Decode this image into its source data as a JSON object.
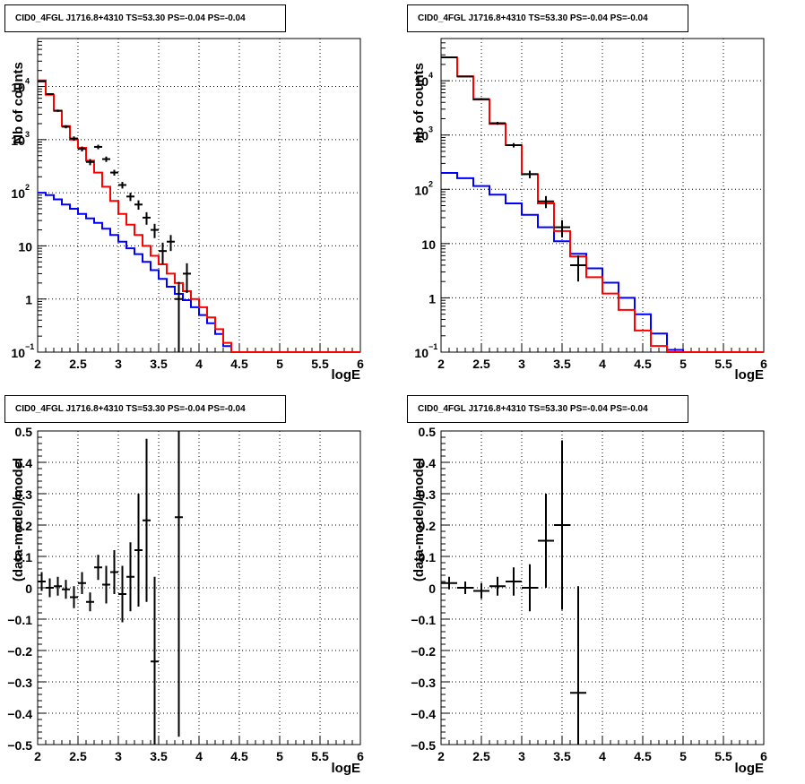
{
  "colors": {
    "data": "#000000",
    "total_model": "#ff0000",
    "bkg_model": "#0000ff",
    "grid": "#000000"
  },
  "chart_data": [
    {
      "type": "line",
      "panel": "top-left",
      "title": "CID0_4FGL J1716.8+4310 TS=53.30 PS=-0.04 PS=-0.04",
      "xlabel": "logE",
      "ylabel": "Nb of counts",
      "xlim": [
        2,
        6
      ],
      "ylim": [
        0.1,
        80000
      ],
      "yscale": "log",
      "grid": true,
      "xticks": [
        "2",
        "2.5",
        "3",
        "3.5",
        "4",
        "4.5",
        "5",
        "5.5",
        "6"
      ],
      "yticks": [
        {
          "v": 0.1,
          "base": "10",
          "exp": "−1"
        },
        {
          "v": 1,
          "label": "1"
        },
        {
          "v": 10,
          "label": "10"
        },
        {
          "v": 100,
          "base": "10",
          "exp": "2"
        },
        {
          "v": 1000,
          "base": "10",
          "exp": "3"
        },
        {
          "v": 10000,
          "base": "10",
          "exp": "4"
        }
      ],
      "bin_edges": [
        2,
        2.1,
        2.2,
        2.3,
        2.4,
        2.5,
        2.6,
        2.7,
        2.8,
        2.9,
        3.0,
        3.1,
        3.2,
        3.3,
        3.4,
        3.5,
        3.6,
        3.7,
        3.8,
        3.9,
        4.0,
        4.1,
        4.2,
        4.3,
        4.4,
        4.5,
        4.6,
        4.7,
        4.8,
        4.9,
        5.0,
        5.1,
        5.2,
        5.3,
        5.4,
        5.5,
        5.6,
        5.7,
        5.8,
        5.9,
        6.0
      ],
      "series": [
        {
          "role": "total_model",
          "values": [
            13000,
            7000,
            3500,
            1800,
            1000,
            700,
            400,
            240,
            130,
            70,
            40,
            25,
            16,
            10,
            6.5,
            4.5,
            3,
            2,
            1.4,
            1,
            0.7,
            0.45,
            0.27,
            0.15,
            0.1,
            0.1,
            0.1,
            0.1,
            0.1,
            0.1,
            0.1,
            0.1,
            0.1,
            0.1,
            0.1,
            0.1,
            0.1,
            0.1,
            0.1,
            0.1
          ]
        },
        {
          "role": "bkg_model",
          "values": [
            100,
            90,
            75,
            60,
            50,
            40,
            33,
            27,
            21,
            16,
            12,
            9,
            7,
            5,
            3.5,
            2.4,
            1.7,
            1.25,
            0.95,
            0.7,
            0.5,
            0.35,
            0.22,
            0.13,
            0.1,
            0.1,
            0.1,
            0.1,
            0.1,
            0.1,
            0.1,
            0.1,
            0.1,
            0.1,
            0.1,
            0.1,
            0.1,
            0.1,
            0.1,
            0.1
          ]
        }
      ],
      "points": [
        {
          "x": 2.05,
          "y": 12500,
          "yerr": 300
        },
        {
          "x": 2.15,
          "y": 7200,
          "yerr": 250
        },
        {
          "x": 2.25,
          "y": 3500,
          "yerr": 180
        },
        {
          "x": 2.35,
          "y": 1750,
          "yerr": 120
        },
        {
          "x": 2.45,
          "y": 1050,
          "yerr": 100
        },
        {
          "x": 2.55,
          "y": 670,
          "yerr": 70
        },
        {
          "x": 2.65,
          "y": 380,
          "yerr": 50
        },
        {
          "x": 2.75,
          "y": 730,
          "yerr": 70
        },
        {
          "x": 2.85,
          "y": 430,
          "yerr": 50
        },
        {
          "x": 2.95,
          "y": 240,
          "yerr": 30
        },
        {
          "x": 3.05,
          "y": 140,
          "yerr": 20
        },
        {
          "x": 3.15,
          "y": 85,
          "yerr": 15
        },
        {
          "x": 3.25,
          "y": 60,
          "yerr": 12
        },
        {
          "x": 3.35,
          "y": 34,
          "yerr": 9
        },
        {
          "x": 3.45,
          "y": 20,
          "yerr": 6
        },
        {
          "x": 3.55,
          "y": 8,
          "yerr": 3.5
        },
        {
          "x": 3.65,
          "y": 12,
          "yerr": 4
        },
        {
          "x": 3.75,
          "y": 1,
          "yerr": 1.1
        },
        {
          "x": 3.85,
          "y": 3,
          "yerr": 1.7
        }
      ]
    },
    {
      "type": "line",
      "panel": "top-right",
      "title": "CID0_4FGL J1716.8+4310 TS=53.30 PS=-0.04 PS=-0.04",
      "xlabel": "logE",
      "ylabel": "nb of counts",
      "xlim": [
        2,
        6
      ],
      "ylim": [
        0.1,
        60000
      ],
      "yscale": "log",
      "grid": true,
      "xticks": [
        "2",
        "2.5",
        "3",
        "3.5",
        "4",
        "4.5",
        "5",
        "5.5",
        "6"
      ],
      "yticks": [
        {
          "v": 0.1,
          "base": "10",
          "exp": "−1"
        },
        {
          "v": 1,
          "label": "1"
        },
        {
          "v": 10,
          "label": "10"
        },
        {
          "v": 100,
          "base": "10",
          "exp": "2"
        },
        {
          "v": 1000,
          "base": "10",
          "exp": "3"
        },
        {
          "v": 10000,
          "base": "10",
          "exp": "4"
        }
      ],
      "bin_edges": [
        2,
        2.2,
        2.4,
        2.6,
        2.8,
        3.0,
        3.2,
        3.4,
        3.6,
        3.8,
        4.0,
        4.2,
        4.4,
        4.6,
        4.8,
        5.0,
        5.2,
        5.4,
        5.6,
        5.8,
        6.0
      ],
      "series": [
        {
          "role": "total_model",
          "values": [
            27000,
            12000,
            4500,
            1600,
            650,
            190,
            55,
            17,
            5.8,
            2.4,
            1.2,
            0.6,
            0.25,
            0.13,
            0.1,
            0.1,
            0.1,
            0.1,
            0.1,
            0.1
          ]
        },
        {
          "role": "bkg_model",
          "values": [
            200,
            160,
            115,
            80,
            55,
            34,
            20,
            11,
            6.5,
            3.5,
            1.9,
            1.0,
            0.5,
            0.22,
            0.11,
            0.1,
            0.1,
            0.1,
            0.1,
            0.1
          ]
        }
      ],
      "points": [
        {
          "x": 2.1,
          "y": 27000,
          "yerr": 500
        },
        {
          "x": 2.3,
          "y": 12000,
          "yerr": 300
        },
        {
          "x": 2.5,
          "y": 4600,
          "yerr": 200
        },
        {
          "x": 2.7,
          "y": 1650,
          "yerr": 100
        },
        {
          "x": 2.9,
          "y": 650,
          "yerr": 60
        },
        {
          "x": 3.1,
          "y": 190,
          "yerr": 30
        },
        {
          "x": 3.3,
          "y": 60,
          "yerr": 15
        },
        {
          "x": 3.5,
          "y": 20,
          "yerr": 7
        },
        {
          "x": 3.7,
          "y": 4,
          "yerr": 2
        }
      ]
    },
    {
      "type": "scatter",
      "panel": "bottom-left",
      "title": "CID0_4FGL J1716.8+4310 TS=53.30 PS=-0.04 PS=-0.04",
      "xlabel": "logE",
      "ylabel": "(data-model)/model",
      "xlim": [
        2,
        6
      ],
      "ylim": [
        -0.5,
        0.5
      ],
      "grid": true,
      "xticks": [
        "2",
        "2.5",
        "3",
        "3.5",
        "4",
        "4.5",
        "5",
        "5.5",
        "6"
      ],
      "yticks": [
        "−0.5",
        "−0.4",
        "−0.3",
        "−0.2",
        "−0.1",
        "0",
        "0.1",
        "0.2",
        "0.3",
        "0.4",
        "0.5"
      ],
      "bin_width": 0.1,
      "points": [
        {
          "x": 2.05,
          "y": 0.02,
          "yerr": 0.03
        },
        {
          "x": 2.15,
          "y": 0.0,
          "yerr": 0.03
        },
        {
          "x": 2.25,
          "y": 0.005,
          "yerr": 0.03
        },
        {
          "x": 2.35,
          "y": -0.005,
          "yerr": 0.03
        },
        {
          "x": 2.45,
          "y": -0.03,
          "yerr": 0.035
        },
        {
          "x": 2.55,
          "y": 0.015,
          "yerr": 0.035
        },
        {
          "x": 2.65,
          "y": -0.045,
          "yerr": 0.03
        },
        {
          "x": 2.75,
          "y": 0.065,
          "yerr": 0.04
        },
        {
          "x": 2.85,
          "y": 0.01,
          "yerr": 0.06
        },
        {
          "x": 2.95,
          "y": 0.05,
          "yerr": 0.07
        },
        {
          "x": 3.05,
          "y": -0.02,
          "yerr": 0.09
        },
        {
          "x": 3.15,
          "y": 0.035,
          "yerr": 0.11
        },
        {
          "x": 3.25,
          "y": 0.12,
          "yerr": 0.18
        },
        {
          "x": 3.35,
          "y": 0.215,
          "yerr": 0.26
        },
        {
          "x": 3.45,
          "y": -0.235,
          "yerr": 0.27
        },
        {
          "x": 3.75,
          "y": 0.225,
          "yerr": 0.7
        }
      ]
    },
    {
      "type": "scatter",
      "panel": "bottom-right",
      "title": "CID0_4FGL J1716.8+4310 TS=53.30 PS=-0.04 PS=-0.04",
      "xlabel": "logE",
      "ylabel": "(data-model)/model",
      "xlim": [
        2,
        6
      ],
      "ylim": [
        -0.5,
        0.5
      ],
      "grid": true,
      "xticks": [
        "2",
        "2.5",
        "3",
        "3.5",
        "4",
        "4.5",
        "5",
        "5.5",
        "6"
      ],
      "yticks": [
        "−0.5",
        "−0.4",
        "−0.3",
        "−0.2",
        "−0.1",
        "0",
        "0.1",
        "0.2",
        "0.3",
        "0.4",
        "0.5"
      ],
      "bin_width": 0.2,
      "points": [
        {
          "x": 2.1,
          "y": 0.015,
          "yerr": 0.02
        },
        {
          "x": 2.3,
          "y": 0.0,
          "yerr": 0.02
        },
        {
          "x": 2.5,
          "y": -0.01,
          "yerr": 0.025
        },
        {
          "x": 2.7,
          "y": 0.005,
          "yerr": 0.03
        },
        {
          "x": 2.9,
          "y": 0.02,
          "yerr": 0.045
        },
        {
          "x": 3.1,
          "y": 0.0,
          "yerr": 0.075
        },
        {
          "x": 3.3,
          "y": 0.15,
          "yerr": 0.15
        },
        {
          "x": 3.5,
          "y": 0.2,
          "yerr": 0.27
        },
        {
          "x": 3.7,
          "y": -0.335,
          "yerr": 0.34
        }
      ]
    }
  ]
}
